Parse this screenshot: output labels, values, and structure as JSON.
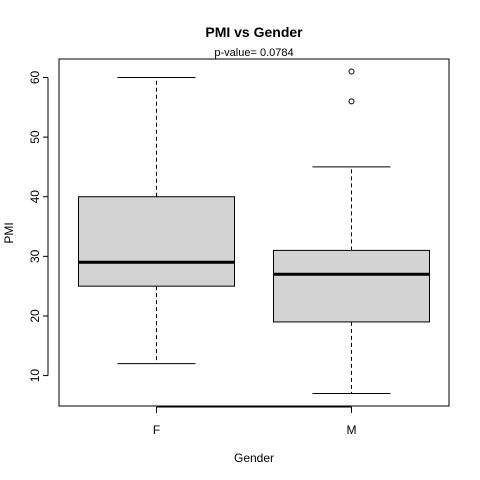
{
  "chart_data": {
    "type": "boxplot",
    "title": "PMI  vs  Gender",
    "subtitle": "p-value= 0.0784",
    "xlabel": "Gender",
    "ylabel": "PMI",
    "categories": [
      "F",
      "M"
    ],
    "boxes": [
      {
        "category": "F",
        "whisker_low": 12,
        "q1": 25,
        "median": 29,
        "q3": 40,
        "whisker_high": 60,
        "outliers": []
      },
      {
        "category": "M",
        "whisker_low": 7,
        "q1": 19,
        "median": 27,
        "q3": 31,
        "whisker_high": 45,
        "outliers": [
          56,
          61
        ]
      }
    ],
    "ylim": [
      4.9,
      63.1
    ],
    "yticks": [
      "10",
      "20",
      "30",
      "40",
      "50",
      "60"
    ],
    "box_fill": "#d3d3d3",
    "grid": false,
    "legend": "none"
  }
}
